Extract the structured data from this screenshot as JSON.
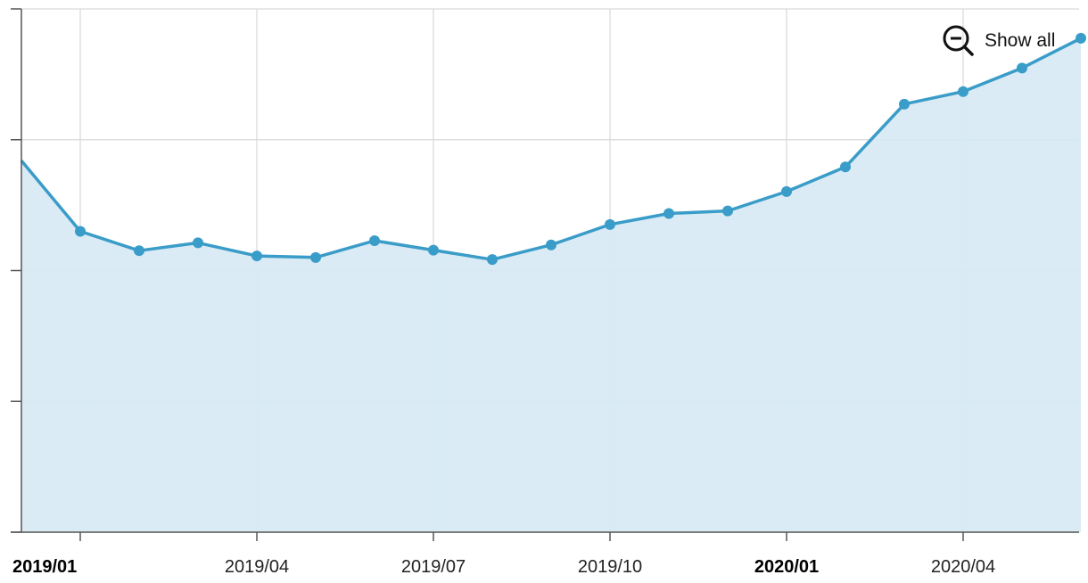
{
  "chart_data": {
    "type": "area",
    "x": [
      "2018/12",
      "2019/01",
      "2019/02",
      "2019/03",
      "2019/04",
      "2019/05",
      "2019/06",
      "2019/07",
      "2019/08",
      "2019/09",
      "2019/10",
      "2019/11",
      "2019/12",
      "2020/01",
      "2020/02",
      "2020/03",
      "2020/04",
      "2020/05",
      "2020/06"
    ],
    "values": [
      71.0,
      57.5,
      53.8,
      55.3,
      52.8,
      52.5,
      55.7,
      53.9,
      52.1,
      54.9,
      58.8,
      60.9,
      61.4,
      65.1,
      69.8,
      81.8,
      84.2,
      88.7,
      94.4
    ],
    "ylim": [
      0,
      100
    ],
    "y_gridlines": 4,
    "x_tick_labels": [
      {
        "label": "2019/01",
        "bold": true
      },
      {
        "label": "2019/04",
        "bold": false
      },
      {
        "label": "2019/07",
        "bold": false
      },
      {
        "label": "2019/10",
        "bold": false
      },
      {
        "label": "2020/01",
        "bold": true
      },
      {
        "label": "2020/04",
        "bold": false
      }
    ],
    "grid": true,
    "line_color": "#3a9cc8",
    "fill_color": "#d6e9f4",
    "grid_color": "#d9d9d9",
    "axis_color": "#555555"
  },
  "controls": {
    "show_all_label": "Show all",
    "show_all_icon": "zoom-out-icon"
  }
}
